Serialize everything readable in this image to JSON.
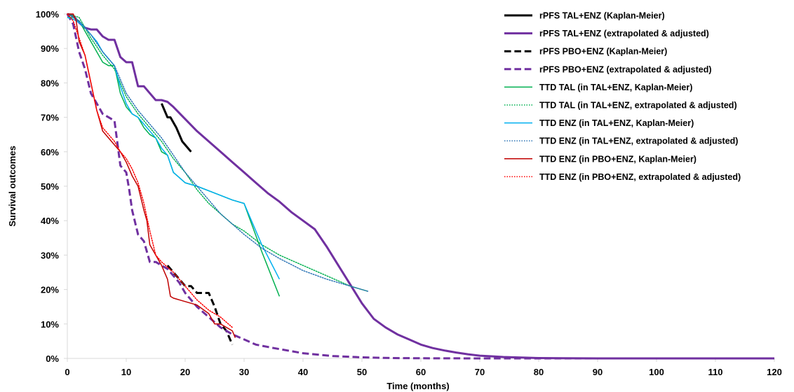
{
  "chart_data": {
    "type": "line",
    "title": "",
    "xlabel": "Time (months)",
    "ylabel": "Survival outcomes",
    "xlim": [
      0,
      120
    ],
    "ylim": [
      0,
      100
    ],
    "x_ticks": [
      "0",
      "10",
      "20",
      "30",
      "40",
      "50",
      "60",
      "70",
      "80",
      "90",
      "100",
      "110",
      "120"
    ],
    "y_ticks": [
      "0%",
      "10%",
      "20%",
      "30%",
      "40%",
      "50%",
      "60%",
      "70%",
      "80%",
      "90%",
      "100%"
    ],
    "grid": false,
    "legend_position": "top-right",
    "series": [
      {
        "name": "rPFS TAL+ENZ (Kaplan-Meier)",
        "color": "#000000",
        "style": "solid",
        "width": 3,
        "x": [
          16,
          17,
          17.5,
          18.5,
          19.5,
          20.5,
          21
        ],
        "y": [
          74,
          70,
          70,
          67,
          63,
          61,
          60
        ]
      },
      {
        "name": "rPFS TAL+ENZ (extrapolated & adjusted)",
        "color": "#7030a0",
        "style": "solid",
        "width": 3,
        "x": [
          0,
          1,
          2,
          3,
          4,
          5,
          6,
          7,
          8,
          9,
          10,
          11,
          12,
          13,
          14,
          15,
          16,
          17,
          18,
          20,
          22,
          24,
          26,
          28,
          30,
          32,
          34,
          36,
          38,
          40,
          42,
          44,
          46,
          48,
          50,
          52,
          54,
          56,
          58,
          60,
          62,
          64,
          66,
          68,
          70,
          72,
          74,
          76,
          78,
          80,
          84,
          90,
          100,
          110,
          120
        ],
        "y": [
          100,
          99.5,
          97.5,
          96,
          95.5,
          95.5,
          93.5,
          92.5,
          92.5,
          87.5,
          86,
          86,
          79,
          79,
          77,
          75,
          75,
          74.5,
          73,
          69.5,
          66,
          63,
          60,
          57,
          54,
          51,
          48,
          45.5,
          42.5,
          40,
          37.5,
          32.5,
          27,
          21.5,
          16,
          11.5,
          9,
          7,
          5.5,
          4,
          3,
          2.3,
          1.7,
          1.2,
          0.8,
          0.6,
          0.4,
          0.3,
          0.2,
          0.1,
          0.05,
          0,
          0,
          0,
          0
        ]
      },
      {
        "name": "rPFS PBO+ENZ (Kaplan-Meier)",
        "color": "#000000",
        "style": "dashed",
        "width": 3,
        "x": [
          17,
          18,
          19,
          20,
          21,
          22,
          23,
          24,
          25,
          26,
          27,
          28
        ],
        "y": [
          27,
          25,
          23,
          21,
          21,
          19,
          19,
          19,
          15,
          10,
          8,
          4
        ]
      },
      {
        "name": "rPFS PBO+ENZ (extrapolated & adjusted)",
        "color": "#7030a0",
        "style": "dashed",
        "width": 3,
        "x": [
          0,
          1,
          1.5,
          2,
          3,
          4,
          5,
          6,
          7,
          8,
          9,
          10,
          10.5,
          11,
          12,
          13,
          14,
          15,
          16,
          17,
          18,
          19,
          20,
          22,
          24,
          26,
          28,
          30,
          32,
          35,
          40,
          45,
          50,
          55,
          60,
          70,
          80,
          120
        ],
        "y": [
          100,
          97,
          93,
          89,
          84,
          77,
          74,
          71,
          70,
          69,
          56,
          54,
          49,
          43,
          36,
          34,
          28,
          28,
          27,
          26,
          24,
          22,
          19,
          15,
          12,
          9,
          7,
          5.5,
          4,
          3,
          1.5,
          0.7,
          0.3,
          0.1,
          0.05,
          0,
          0,
          0
        ]
      },
      {
        "name": "TTD TAL (in TAL+ENZ, Kaplan-Meier)",
        "color": "#00b050",
        "style": "solid",
        "width": 1.5,
        "x": [
          0,
          1,
          2,
          3,
          4,
          5,
          6,
          7,
          8,
          9,
          10,
          11,
          12,
          13,
          14,
          15,
          16,
          17,
          18,
          20,
          22,
          25,
          28,
          30,
          33,
          36
        ],
        "y": [
          99,
          99,
          98,
          95,
          92,
          89,
          86,
          85,
          85,
          77,
          73,
          71,
          70,
          67,
          65,
          64,
          60,
          59,
          54,
          51,
          50,
          48,
          46,
          45,
          31,
          18
        ]
      },
      {
        "name": "TTD TAL (in TAL+ENZ, extrapolated & adjusted)",
        "color": "#00b050",
        "style": "dotted",
        "width": 1.5,
        "x": [
          0,
          2,
          4,
          6,
          8,
          10,
          12,
          14,
          16,
          18,
          20,
          22,
          24,
          26,
          28,
          30,
          33,
          36,
          40,
          44,
          48,
          51
        ],
        "y": [
          100,
          99,
          93,
          88,
          84,
          76,
          71,
          67,
          63,
          58,
          54,
          49,
          45,
          42,
          39,
          37,
          33,
          30,
          27,
          24,
          21,
          19.5
        ]
      },
      {
        "name": "TTD ENZ (in TAL+ENZ, Kaplan-Meier)",
        "color": "#00b0f0",
        "style": "solid",
        "width": 1.5,
        "x": [
          0,
          1,
          2,
          3,
          4,
          5,
          6,
          7,
          8,
          9,
          10,
          11,
          12,
          13,
          14,
          15,
          16,
          17,
          18,
          20,
          22,
          25,
          28,
          30,
          33,
          36
        ],
        "y": [
          99,
          98.5,
          97.5,
          96,
          94,
          92,
          89,
          87,
          85,
          79,
          74,
          71,
          70,
          68,
          66,
          64,
          61,
          59,
          54,
          51,
          50,
          48,
          46,
          45,
          33,
          23
        ]
      },
      {
        "name": "TTD ENZ (in TAL+ENZ, extrapolated & adjusted)",
        "color": "#2e75b6",
        "style": "dotted",
        "width": 1.5,
        "x": [
          0,
          2,
          4,
          6,
          8,
          10,
          12,
          14,
          16,
          18,
          20,
          22,
          24,
          26,
          28,
          30,
          33,
          36,
          40,
          44,
          48,
          51
        ],
        "y": [
          100,
          98,
          94,
          89,
          85,
          77,
          72,
          68,
          64,
          59,
          54,
          50,
          46,
          42,
          39,
          36,
          32,
          29,
          25.5,
          23,
          21,
          19.5
        ]
      },
      {
        "name": "TTD ENZ (in PBO+ENZ, Kaplan-Meier)",
        "color": "#c00000",
        "style": "solid",
        "width": 1.5,
        "x": [
          0,
          1,
          1.5,
          2,
          3,
          4,
          5,
          6,
          7,
          8,
          9,
          10,
          11,
          12,
          13,
          13.5,
          14,
          15,
          16,
          17,
          17.5,
          18,
          20,
          22,
          24,
          25,
          26,
          28,
          28.5
        ],
        "y": [
          100,
          100,
          98,
          92,
          88,
          80,
          72,
          66,
          64,
          62,
          60,
          57,
          53,
          50,
          43,
          40,
          33,
          30,
          27,
          23,
          18,
          17.5,
          16.5,
          15.5,
          13,
          10,
          10,
          8,
          6
        ]
      },
      {
        "name": "TTD ENZ (in PBO+ENZ, extrapolated & adjusted)",
        "color": "#ff0000",
        "style": "dotted",
        "width": 1.5,
        "x": [
          0,
          1,
          2,
          3,
          4,
          5,
          6,
          7,
          8,
          9,
          10,
          11,
          12,
          13,
          14,
          15,
          16,
          18,
          20,
          22,
          24,
          26,
          28
        ],
        "y": [
          100,
          98,
          93,
          88,
          80,
          72,
          67,
          65,
          63,
          60,
          58,
          55,
          51,
          45,
          37,
          30,
          28,
          25,
          21,
          17,
          14,
          12,
          9
        ]
      }
    ]
  }
}
